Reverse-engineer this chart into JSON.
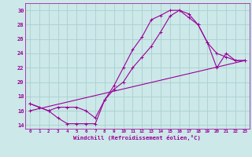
{
  "xlabel": "Windchill (Refroidissement éolien,°C)",
  "bg_color": "#cce8e8",
  "grid_color": "#aacfcf",
  "line_color": "#990099",
  "xlim": [
    -0.5,
    23.5
  ],
  "ylim": [
    13.5,
    31.0
  ],
  "xticks": [
    0,
    1,
    2,
    3,
    4,
    5,
    6,
    7,
    8,
    9,
    10,
    11,
    12,
    13,
    14,
    15,
    16,
    17,
    18,
    19,
    20,
    21,
    22,
    23
  ],
  "yticks": [
    14,
    16,
    18,
    20,
    22,
    24,
    26,
    28,
    30
  ],
  "curve1_x": [
    0,
    1,
    2,
    3,
    4,
    5,
    6,
    7,
    8,
    9,
    10,
    11,
    12,
    13,
    14,
    15,
    16,
    17,
    18,
    19,
    20,
    21,
    22,
    23
  ],
  "curve1_y": [
    17.0,
    16.5,
    16.0,
    15.0,
    14.2,
    14.2,
    14.2,
    14.2,
    17.5,
    19.5,
    22.0,
    24.5,
    26.3,
    28.7,
    29.3,
    30.0,
    30.0,
    29.0,
    28.0,
    25.5,
    24.0,
    23.5,
    23.0,
    23.0
  ],
  "curve2_x": [
    0,
    2,
    3,
    4,
    5,
    6,
    7,
    8,
    9,
    10,
    11,
    12,
    13,
    14,
    15,
    16,
    17,
    18,
    19,
    20,
    21,
    22,
    23
  ],
  "curve2_y": [
    17.0,
    16.0,
    16.5,
    16.5,
    16.5,
    16.0,
    15.0,
    17.5,
    19.0,
    20.0,
    22.0,
    23.5,
    25.0,
    27.0,
    29.2,
    30.0,
    29.5,
    28.0,
    25.5,
    22.0,
    24.0,
    23.0,
    23.0
  ],
  "curve3_x": [
    0,
    23
  ],
  "curve3_y": [
    16.0,
    23.0
  ]
}
